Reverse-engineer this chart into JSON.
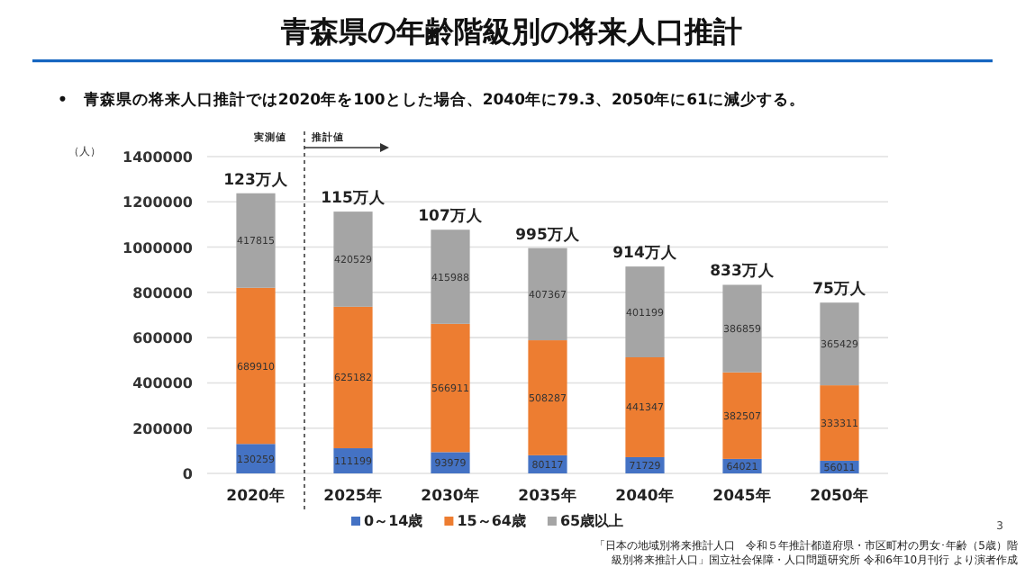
{
  "chart_data": {
    "type": "bar",
    "stacked": true,
    "title": "青森県の年齢階級別の将来人口推計",
    "subtitle": "•　青森県の将来人口推計では2020年を100とした場合、2040年に79.3、2050年に61に減少する。",
    "ylabel": "（人）",
    "categories": [
      "2020年",
      "2025年",
      "2030年",
      "2035年",
      "2040年",
      "2045年",
      "2050年"
    ],
    "series": [
      {
        "name": "0～14歳",
        "color": "#4472c4",
        "values": [
          130259,
          111199,
          93979,
          80117,
          71729,
          64021,
          56011
        ]
      },
      {
        "name": "15～64歳",
        "color": "#ed7d31",
        "values": [
          689910,
          625182,
          566911,
          508287,
          441347,
          382507,
          333311
        ]
      },
      {
        "name": "65歳以上",
        "color": "#a5a5a5",
        "values": [
          417815,
          420529,
          415988,
          407367,
          401199,
          386859,
          365429
        ]
      }
    ],
    "ylim": [
      0,
      1400000
    ],
    "yticks": [
      0,
      200000,
      400000,
      600000,
      800000,
      1000000,
      1200000,
      1400000
    ],
    "grid": "y",
    "legend": "bottom",
    "data_labels": true,
    "annotations": [
      {
        "text": "123万人",
        "x": "2020年",
        "y": 1237984
      },
      {
        "text": "115万人",
        "x": "2025年",
        "y": 1156910
      },
      {
        "text": "107万人",
        "x": "2030年",
        "y": 1076878
      },
      {
        "text": "995万人",
        "x": "2035年",
        "y": 995771
      },
      {
        "text": "914万人",
        "x": "2040年",
        "y": 914275
      },
      {
        "text": "833万人",
        "x": "2045年",
        "y": 833387
      },
      {
        "text": "75万人",
        "x": "2050年",
        "y": 754751
      },
      "実測値",
      "推計値",
      "「日本の地域別将来推計人口　令和５年推計都道府県・市区町村の男女･年齢（5歳）階級別将来推計人口」国立社会保障・人口問題研究所 令和6年10月刊行 より演者作成",
      "3"
    ]
  }
}
